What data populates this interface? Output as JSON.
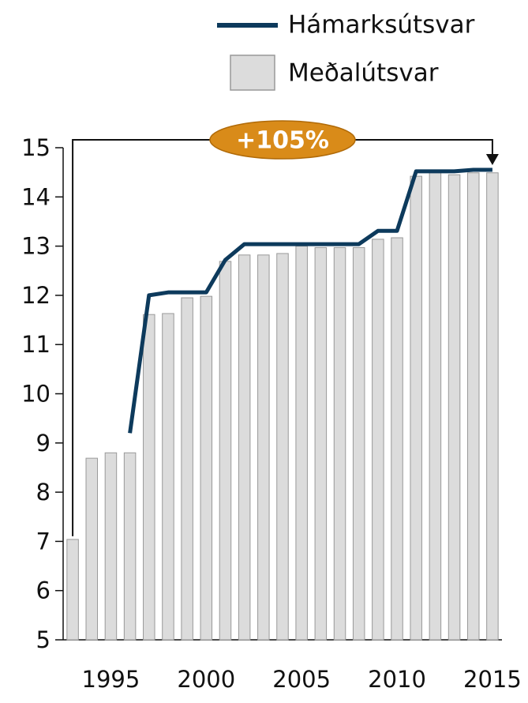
{
  "chart_data": {
    "type": "bar",
    "x": [
      1993,
      1994,
      1995,
      1996,
      1997,
      1998,
      1999,
      2000,
      2001,
      2002,
      2003,
      2004,
      2005,
      2006,
      2007,
      2008,
      2009,
      2010,
      2011,
      2012,
      2013,
      2014,
      2015
    ],
    "xlim": [
      1992.5,
      2015.5
    ],
    "xticks": [
      1995,
      2000,
      2005,
      2010,
      2015
    ],
    "ylim": [
      5,
      15
    ],
    "yticks": [
      5,
      6,
      7,
      8,
      9,
      10,
      11,
      12,
      13,
      14,
      15
    ],
    "grid": false,
    "legend": "top-right",
    "series": [
      {
        "name": "Hámarksútsvar",
        "type": "line",
        "color": "#0d3a5c",
        "values": [
          null,
          null,
          null,
          9.2,
          12.0,
          12.06,
          12.06,
          12.06,
          12.72,
          13.04,
          13.04,
          13.04,
          13.04,
          13.04,
          13.04,
          13.04,
          13.31,
          13.31,
          14.52,
          14.52,
          14.52,
          14.55,
          14.55
        ]
      },
      {
        "name": "Meðalútsvar",
        "type": "bar",
        "color": "#dcdcdc",
        "values": [
          7.04,
          8.69,
          8.8,
          8.8,
          11.61,
          11.63,
          11.95,
          11.98,
          12.69,
          12.82,
          12.82,
          12.85,
          13.0,
          12.97,
          12.97,
          12.97,
          13.14,
          13.17,
          14.42,
          14.5,
          14.45,
          14.49,
          14.49
        ]
      }
    ],
    "annotation": "+105%"
  }
}
